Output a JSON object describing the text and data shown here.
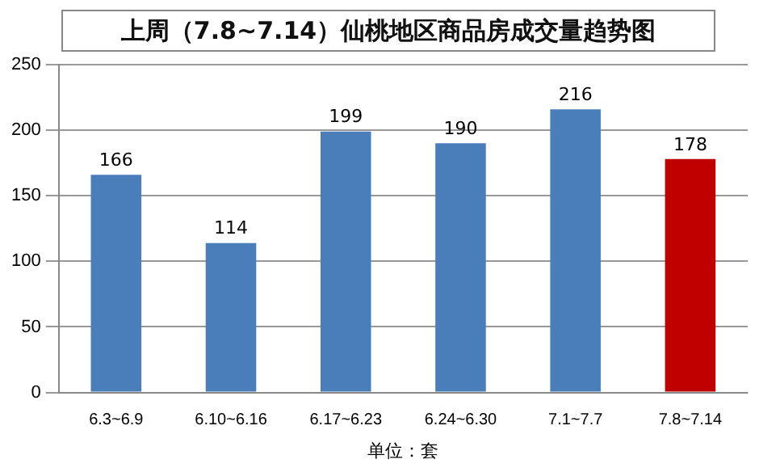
{
  "chart_data": {
    "type": "bar",
    "title": "上周（7.8~7.14）仙桃地区商品房成交量趋势图",
    "xlabel": "单位：套",
    "categories": [
      "6.3~6.9",
      "6.10~6.16",
      "6.17~6.23",
      "6.24~6.30",
      "7.1~7.7",
      "7.8~7.14"
    ],
    "values": [
      166,
      114,
      199,
      190,
      216,
      178
    ],
    "colors": [
      "#4a7ebb",
      "#4a7ebb",
      "#4a7ebb",
      "#4a7ebb",
      "#4a7ebb",
      "#c00000"
    ],
    "ylim": [
      0,
      250
    ],
    "yticks": [
      0,
      50,
      100,
      150,
      200,
      250
    ],
    "grid": "y",
    "data_labels": true
  }
}
